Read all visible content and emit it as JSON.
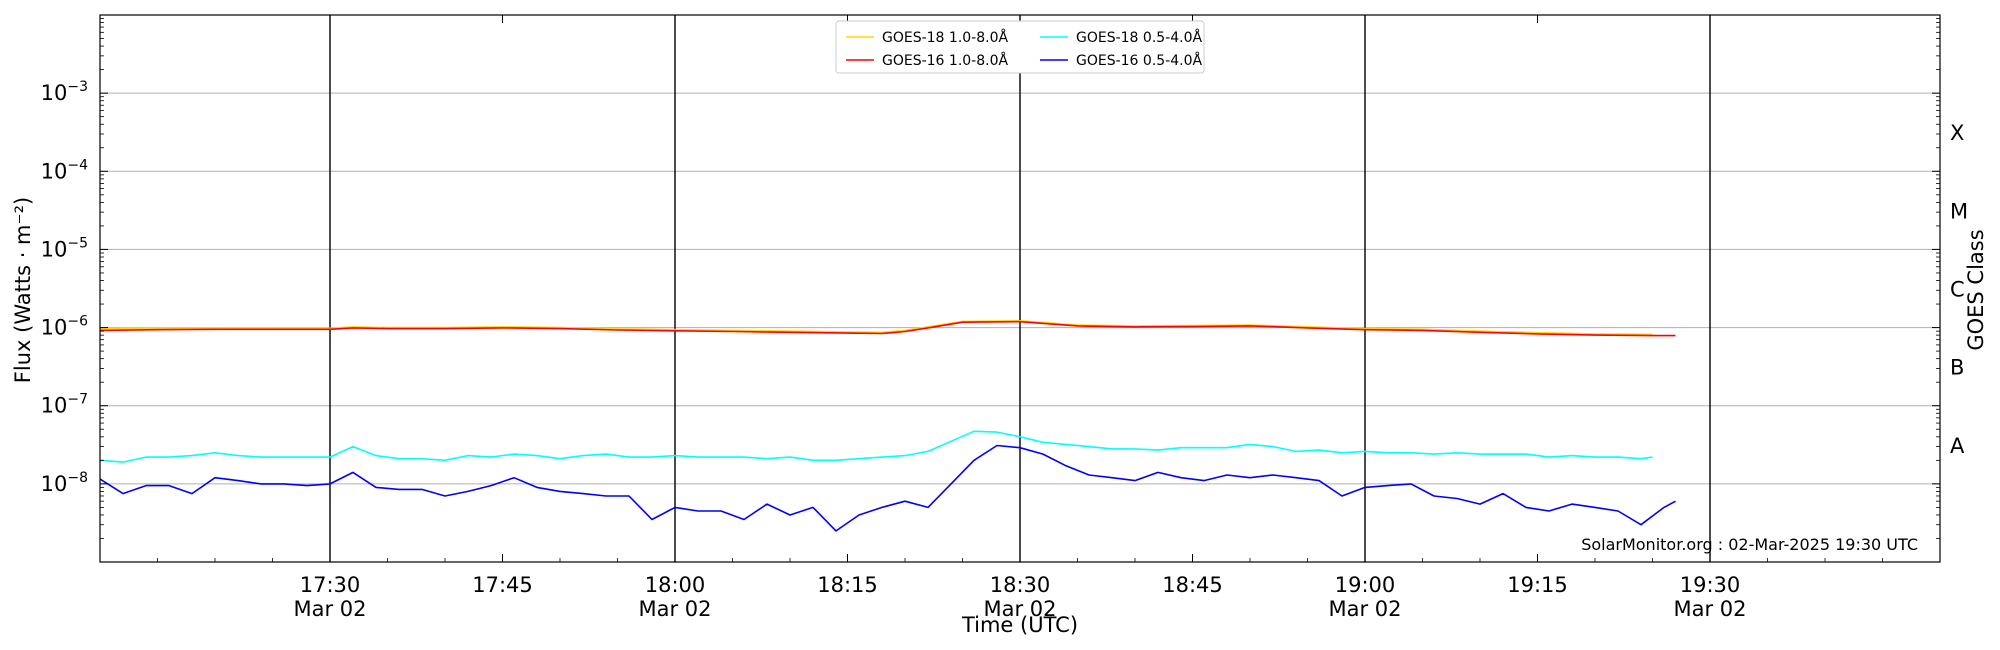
{
  "chart_data": {
    "type": "line",
    "xlabel": "Time (UTC)",
    "ylabel": "Flux (Watts · m⁻²)",
    "ylabel_right": "GOES Class",
    "y_scale": "log",
    "ylim": [
      1e-09,
      0.01
    ],
    "xlim": [
      "17:10",
      "19:50"
    ],
    "x_ticks": [
      {
        "time": "17:30",
        "label": "17:30",
        "sublabel": "Mar 02"
      },
      {
        "time": "17:45",
        "label": "17:45",
        "sublabel": ""
      },
      {
        "time": "18:00",
        "label": "18:00",
        "sublabel": "Mar 02"
      },
      {
        "time": "18:15",
        "label": "18:15",
        "sublabel": ""
      },
      {
        "time": "18:30",
        "label": "18:30",
        "sublabel": "Mar 02"
      },
      {
        "time": "18:45",
        "label": "18:45",
        "sublabel": ""
      },
      {
        "time": "19:00",
        "label": "19:00",
        "sublabel": "Mar 02"
      },
      {
        "time": "19:15",
        "label": "19:15",
        "sublabel": ""
      },
      {
        "time": "19:30",
        "label": "19:30",
        "sublabel": "Mar 02"
      }
    ],
    "vertical_lines": [
      "17:30",
      "18:00",
      "18:30",
      "19:00",
      "19:30"
    ],
    "y_ticks": [
      {
        "exp": -8,
        "base": "10",
        "sup": "−8"
      },
      {
        "exp": -7,
        "base": "10",
        "sup": "−7"
      },
      {
        "exp": -6,
        "base": "10",
        "sup": "−6"
      },
      {
        "exp": -5,
        "base": "10",
        "sup": "−5"
      },
      {
        "exp": -4,
        "base": "10",
        "sup": "−4"
      },
      {
        "exp": -3,
        "base": "10",
        "sup": "−3"
      }
    ],
    "goes_classes": [
      {
        "label": "A",
        "exp": -7.5
      },
      {
        "label": "B",
        "exp": -6.5
      },
      {
        "label": "C",
        "exp": -5.5
      },
      {
        "label": "M",
        "exp": -4.5
      },
      {
        "label": "X",
        "exp": -3.5
      }
    ],
    "grid": true,
    "legend_position": "top-center",
    "credit": "SolarMonitor.org : 02-Mar-2025 19:30 UTC",
    "series": [
      {
        "name": "GOES-18 1.0-8.0Å",
        "color": "#ffd700",
        "x": [
          "17:10",
          "17:15",
          "17:20",
          "17:25",
          "17:30",
          "17:32",
          "17:35",
          "17:40",
          "17:45",
          "17:50",
          "17:55",
          "18:00",
          "18:05",
          "18:10",
          "18:15",
          "18:18",
          "18:20",
          "18:22",
          "18:25",
          "18:30",
          "18:35",
          "18:40",
          "18:45",
          "18:50",
          "18:55",
          "19:00",
          "19:05",
          "19:10",
          "19:15",
          "19:20",
          "19:25"
        ],
        "y": [
          9.7e-07,
          9.8e-07,
          9.9e-07,
          9.9e-07,
          9.8e-07,
          1.02e-06,
          1e-06,
          1e-06,
          1.02e-06,
          1e-06,
          9.6e-07,
          9.4e-07,
          9.2e-07,
          9e-07,
          8.8e-07,
          8.7e-07,
          9.2e-07,
          1.02e-06,
          1.2e-06,
          1.22e-06,
          1.08e-06,
          1.05e-06,
          1.06e-06,
          1.08e-06,
          1.02e-06,
          9.7e-07,
          9.5e-07,
          9e-07,
          8.6e-07,
          8.3e-07,
          8.2e-07
        ]
      },
      {
        "name": "GOES-16 1.0-8.0Å",
        "color": "#ff0000",
        "x": [
          "17:10",
          "17:15",
          "17:20",
          "17:25",
          "17:30",
          "17:32",
          "17:35",
          "17:40",
          "17:45",
          "17:50",
          "17:55",
          "18:00",
          "18:05",
          "18:10",
          "18:15",
          "18:18",
          "18:20",
          "18:22",
          "18:25",
          "18:30",
          "18:35",
          "18:40",
          "18:45",
          "18:50",
          "18:55",
          "19:00",
          "19:05",
          "19:10",
          "19:15",
          "19:20",
          "19:25",
          "19:27"
        ],
        "y": [
          9.2e-07,
          9.4e-07,
          9.5e-07,
          9.5e-07,
          9.5e-07,
          9.9e-07,
          9.7e-07,
          9.7e-07,
          9.9e-07,
          9.7e-07,
          9.3e-07,
          9.1e-07,
          8.9e-07,
          8.7e-07,
          8.5e-07,
          8.4e-07,
          8.9e-07,
          9.9e-07,
          1.17e-06,
          1.19e-06,
          1.05e-06,
          1.02e-06,
          1.03e-06,
          1.05e-06,
          9.9e-07,
          9.4e-07,
          9.2e-07,
          8.7e-07,
          8.3e-07,
          8e-07,
          7.9e-07,
          7.9e-07
        ]
      },
      {
        "name": "GOES-18 0.5-4.0Å",
        "color": "#00ffff",
        "x": [
          "17:10",
          "17:12",
          "17:14",
          "17:16",
          "17:18",
          "17:20",
          "17:22",
          "17:24",
          "17:26",
          "17:28",
          "17:30",
          "17:32",
          "17:34",
          "17:36",
          "17:38",
          "17:40",
          "17:42",
          "17:44",
          "17:46",
          "17:48",
          "17:50",
          "17:52",
          "17:54",
          "17:56",
          "17:58",
          "18:00",
          "18:02",
          "18:04",
          "18:06",
          "18:08",
          "18:10",
          "18:12",
          "18:14",
          "18:16",
          "18:18",
          "18:20",
          "18:22",
          "18:24",
          "18:26",
          "18:28",
          "18:30",
          "18:32",
          "18:34",
          "18:36",
          "18:38",
          "18:40",
          "18:42",
          "18:44",
          "18:46",
          "18:48",
          "18:50",
          "18:52",
          "18:54",
          "18:56",
          "18:58",
          "19:00",
          "19:02",
          "19:04",
          "19:06",
          "19:08",
          "19:10",
          "19:12",
          "19:14",
          "19:16",
          "19:18",
          "19:20",
          "19:22",
          "19:24",
          "19:25"
        ],
        "y": [
          2e-08,
          1.9e-08,
          2.2e-08,
          2.2e-08,
          2.3e-08,
          2.5e-08,
          2.3e-08,
          2.2e-08,
          2.2e-08,
          2.2e-08,
          2.2e-08,
          3e-08,
          2.3e-08,
          2.1e-08,
          2.1e-08,
          2e-08,
          2.3e-08,
          2.2e-08,
          2.4e-08,
          2.3e-08,
          2.1e-08,
          2.3e-08,
          2.4e-08,
          2.2e-08,
          2.2e-08,
          2.3e-08,
          2.2e-08,
          2.2e-08,
          2.2e-08,
          2.1e-08,
          2.2e-08,
          2e-08,
          2e-08,
          2.1e-08,
          2.2e-08,
          2.3e-08,
          2.6e-08,
          3.5e-08,
          4.7e-08,
          4.6e-08,
          4e-08,
          3.4e-08,
          3.2e-08,
          3e-08,
          2.8e-08,
          2.8e-08,
          2.7e-08,
          2.9e-08,
          2.9e-08,
          2.9e-08,
          3.2e-08,
          3e-08,
          2.6e-08,
          2.7e-08,
          2.5e-08,
          2.6e-08,
          2.5e-08,
          2.5e-08,
          2.4e-08,
          2.5e-08,
          2.4e-08,
          2.4e-08,
          2.4e-08,
          2.2e-08,
          2.3e-08,
          2.2e-08,
          2.2e-08,
          2.1e-08,
          2.2e-08
        ]
      },
      {
        "name": "GOES-16 0.5-4.0Å",
        "color": "#0000ff",
        "x": [
          "17:10",
          "17:12",
          "17:14",
          "17:16",
          "17:18",
          "17:20",
          "17:22",
          "17:24",
          "17:26",
          "17:28",
          "17:30",
          "17:32",
          "17:34",
          "17:36",
          "17:38",
          "17:40",
          "17:42",
          "17:44",
          "17:46",
          "17:48",
          "17:50",
          "17:52",
          "17:54",
          "17:56",
          "17:58",
          "18:00",
          "18:02",
          "18:04",
          "18:06",
          "18:08",
          "18:10",
          "18:12",
          "18:14",
          "18:16",
          "18:18",
          "18:20",
          "18:22",
          "18:24",
          "18:26",
          "18:28",
          "18:30",
          "18:32",
          "18:34",
          "18:36",
          "18:38",
          "18:40",
          "18:42",
          "18:44",
          "18:46",
          "18:48",
          "18:50",
          "18:52",
          "18:54",
          "18:56",
          "18:58",
          "19:00",
          "19:02",
          "19:04",
          "19:06",
          "19:08",
          "19:10",
          "19:12",
          "19:14",
          "19:16",
          "19:18",
          "19:20",
          "19:22",
          "19:24",
          "19:26",
          "19:27"
        ],
        "y": [
          1.15e-08,
          7.5e-09,
          9.5e-09,
          9.5e-09,
          7.5e-09,
          1.2e-08,
          1.1e-08,
          1e-08,
          1e-08,
          9.5e-09,
          1e-08,
          1.4e-08,
          9e-09,
          8.5e-09,
          8.5e-09,
          7e-09,
          8e-09,
          9.5e-09,
          1.2e-08,
          9e-09,
          8e-09,
          7.5e-09,
          7e-09,
          7e-09,
          3.5e-09,
          5e-09,
          4.5e-09,
          4.5e-09,
          3.5e-09,
          5.5e-09,
          4e-09,
          5e-09,
          2.5e-09,
          4e-09,
          5e-09,
          6e-09,
          5e-09,
          1e-08,
          2e-08,
          3.1e-08,
          2.9e-08,
          2.4e-08,
          1.7e-08,
          1.3e-08,
          1.2e-08,
          1.1e-08,
          1.4e-08,
          1.2e-08,
          1.1e-08,
          1.3e-08,
          1.2e-08,
          1.3e-08,
          1.2e-08,
          1.1e-08,
          7e-09,
          9e-09,
          9.5e-09,
          1e-08,
          7e-09,
          6.5e-09,
          5.5e-09,
          7.5e-09,
          5e-09,
          4.5e-09,
          5.5e-09,
          5e-09,
          4.5e-09,
          3e-09,
          5e-09,
          6e-09
        ]
      }
    ]
  }
}
